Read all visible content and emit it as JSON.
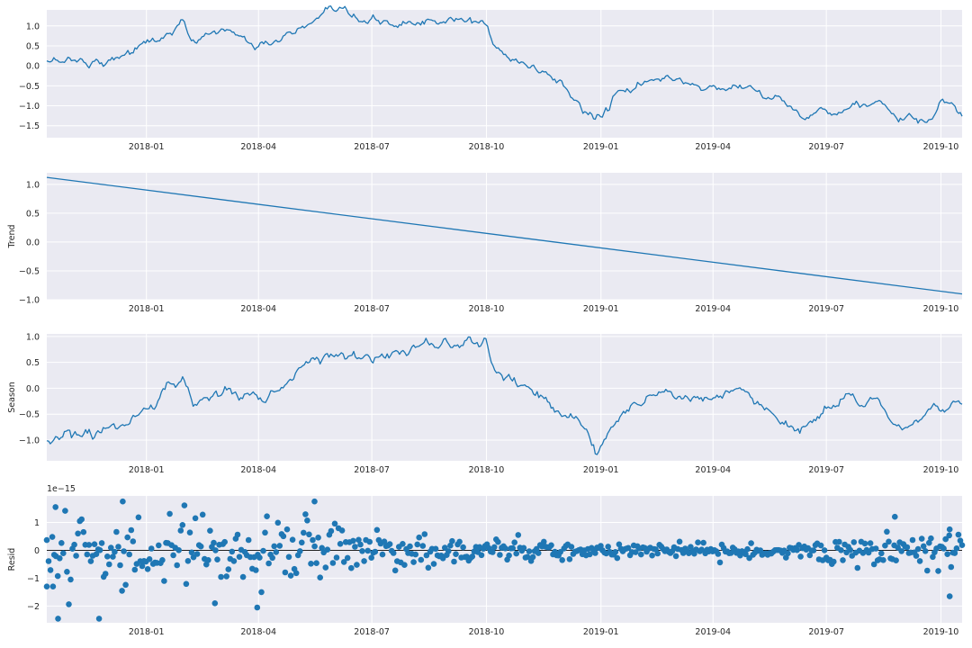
{
  "chart_data": [
    {
      "type": "line",
      "panel": "observed",
      "ylabel": "",
      "ylim": [
        -1.8,
        1.4
      ],
      "yticks": [
        1.0,
        0.5,
        0.0,
        -0.5,
        -1.0,
        -1.5
      ],
      "ytick_labels": [
        "1.0",
        "0.5",
        "0.0",
        "−0.5",
        "−1.0",
        "−1.5"
      ],
      "x_dates": [
        "2017-10-13",
        "2017-10-20",
        "2017-11-01",
        "2017-11-15",
        "2017-12-01",
        "2017-12-15",
        "2018-01-01",
        "2018-01-10",
        "2018-01-20",
        "2018-01-31",
        "2018-02-05",
        "2018-02-08",
        "2018-02-15",
        "2018-03-01",
        "2018-03-10",
        "2018-03-20",
        "2018-03-28",
        "2018-04-05",
        "2018-04-15",
        "2018-05-01",
        "2018-05-15",
        "2018-05-25",
        "2018-06-10",
        "2018-06-25",
        "2018-07-01",
        "2018-07-15",
        "2018-08-01",
        "2018-08-15",
        "2018-09-01",
        "2018-09-15",
        "2018-10-01",
        "2018-10-05",
        "2018-10-10",
        "2018-10-20",
        "2018-11-01",
        "2018-11-15",
        "2018-12-01",
        "2018-12-10",
        "2018-12-20",
        "2018-12-27",
        "2019-01-10",
        "2019-01-20",
        "2019-02-01",
        "2019-02-15",
        "2019-02-25",
        "2019-03-10",
        "2019-03-25",
        "2019-04-01",
        "2019-04-15",
        "2019-04-25",
        "2019-05-10",
        "2019-05-25",
        "2019-06-10",
        "2019-06-20",
        "2019-07-01",
        "2019-07-15",
        "2019-08-01",
        "2019-08-15",
        "2019-08-28",
        "2019-09-10",
        "2019-09-20",
        "2019-10-01",
        "2019-10-10",
        "2019-10-18"
      ],
      "values": [
        0.08,
        0.12,
        0.2,
        0.12,
        0.15,
        0.35,
        0.55,
        0.65,
        0.85,
        1.1,
        0.5,
        0.55,
        0.75,
        0.9,
        0.85,
        0.75,
        0.5,
        0.45,
        0.65,
        0.85,
        1.0,
        1.2,
        1.15,
        1.05,
        1.0,
        1.05,
        1.1,
        1.1,
        1.1,
        1.05,
        1.05,
        0.6,
        0.45,
        0.15,
        0.0,
        -0.15,
        -0.4,
        -0.8,
        -1.2,
        -1.35,
        -0.9,
        -0.6,
        -0.5,
        -0.4,
        -0.3,
        -0.4,
        -0.55,
        -0.6,
        -0.5,
        -0.45,
        -0.6,
        -0.9,
        -1.25,
        -1.3,
        -1.0,
        -0.95,
        -1.0,
        -0.95,
        -1.3,
        -1.45,
        -1.5,
        -0.95,
        -1.15,
        -1.3
      ]
    },
    {
      "type": "line",
      "panel": "trend",
      "ylabel": "Trend",
      "ylim": [
        -1.0,
        1.2
      ],
      "yticks": [
        1.0,
        0.5,
        0.0,
        -0.5,
        -1.0
      ],
      "ytick_labels": [
        "1.0",
        "0.5",
        "0.0",
        "−0.5",
        "−1.0"
      ],
      "x_dates": [
        "2017-10-13",
        "2019-10-18"
      ],
      "values": [
        1.12,
        -0.9
      ]
    },
    {
      "type": "line",
      "panel": "season",
      "ylabel": "Season",
      "ylim": [
        -1.4,
        1.05
      ],
      "yticks": [
        1.0,
        0.5,
        0.0,
        -0.5,
        -1.0
      ],
      "ytick_labels": [
        "1.0",
        "0.5",
        "0.0",
        "−0.5",
        "−1.0"
      ],
      "x_dates": [
        "2017-10-13",
        "2017-10-25",
        "2017-11-10",
        "2017-11-25",
        "2017-12-10",
        "2017-12-25",
        "2018-01-10",
        "2018-01-20",
        "2018-01-31",
        "2018-02-05",
        "2018-02-08",
        "2018-02-20",
        "2018-03-05",
        "2018-03-20",
        "2018-04-01",
        "2018-04-15",
        "2018-05-01",
        "2018-05-15",
        "2018-06-01",
        "2018-06-15",
        "2018-07-01",
        "2018-07-15",
        "2018-08-01",
        "2018-08-15",
        "2018-09-01",
        "2018-09-15",
        "2018-09-25",
        "2018-10-01",
        "2018-10-05",
        "2018-10-15",
        "2018-11-01",
        "2018-11-15",
        "2018-12-01",
        "2018-12-15",
        "2018-12-25",
        "2018-12-29",
        "2019-01-10",
        "2019-01-25",
        "2019-02-10",
        "2019-02-25",
        "2019-03-10",
        "2019-03-25",
        "2019-04-10",
        "2019-04-25",
        "2019-05-10",
        "2019-05-25",
        "2019-06-10",
        "2019-06-20",
        "2019-07-05",
        "2019-07-20",
        "2019-08-01",
        "2019-08-10",
        "2019-08-20",
        "2019-09-01",
        "2019-09-15",
        "2019-09-25",
        "2019-10-05",
        "2019-10-18"
      ],
      "values": [
        -1.05,
        -1.0,
        -0.95,
        -0.9,
        -0.7,
        -0.5,
        -0.3,
        0.0,
        0.25,
        -0.15,
        -0.45,
        -0.2,
        0.0,
        -0.15,
        -0.2,
        -0.05,
        0.2,
        0.5,
        0.7,
        0.65,
        0.55,
        0.65,
        0.75,
        0.82,
        0.88,
        0.85,
        0.9,
        0.9,
        0.45,
        0.2,
        0.0,
        -0.15,
        -0.35,
        -0.6,
        -1.0,
        -1.3,
        -0.7,
        -0.3,
        -0.15,
        -0.05,
        -0.2,
        -0.3,
        -0.15,
        -0.1,
        -0.25,
        -0.55,
        -0.85,
        -0.6,
        -0.4,
        -0.3,
        -0.35,
        -0.2,
        -0.65,
        -0.75,
        -0.6,
        -0.2,
        -0.35,
        -0.35
      ]
    },
    {
      "type": "scatter",
      "panel": "resid",
      "ylabel": "Resid",
      "offset_label": "1e−15",
      "ylim": [
        -2.6,
        1.95
      ],
      "yticks": [
        1,
        0,
        -1,
        -2
      ],
      "ytick_labels": [
        "1",
        "0",
        "−1",
        "−2"
      ],
      "hline": 0,
      "x_start": "2017-10-13",
      "x_end": "2019-10-18",
      "n_points": 500,
      "amplitude_envelope": {
        "dates": [
          "2017-10-13",
          "2018-01-01",
          "2018-06-01",
          "2018-10-01",
          "2019-01-01",
          "2019-06-01",
          "2019-08-15",
          "2019-10-18"
        ],
        "std": [
          1.0,
          0.9,
          0.75,
          0.35,
          0.15,
          0.18,
          0.4,
          0.45
        ]
      },
      "highlight_points": [
        {
          "x": "2017-10-22",
          "y": -2.45
        },
        {
          "x": "2017-11-24",
          "y": -2.45
        },
        {
          "x": "2018-03-31",
          "y": -2.05
        },
        {
          "x": "2018-02-25",
          "y": -1.9
        },
        {
          "x": "2017-12-13",
          "y": 1.75
        },
        {
          "x": "2018-05-16",
          "y": 1.75
        },
        {
          "x": "2017-10-20",
          "y": 1.55
        },
        {
          "x": "2019-08-25",
          "y": 1.2
        },
        {
          "x": "2019-10-08",
          "y": -1.65
        },
        {
          "x": "2019-10-08",
          "y": 0.75
        },
        {
          "x": "2017-10-13",
          "y": -1.3
        },
        {
          "x": "2017-10-18",
          "y": -1.3
        }
      ]
    }
  ],
  "x_axis": {
    "range": [
      "2017-10-13",
      "2019-10-18"
    ],
    "ticks": [
      "2018-01-01",
      "2018-04-01",
      "2018-07-01",
      "2018-10-01",
      "2019-01-01",
      "2019-04-01",
      "2019-07-01",
      "2019-10-01"
    ],
    "tick_labels": [
      "2018-01",
      "2018-04",
      "2018-07",
      "2018-10",
      "2019-01",
      "2019-04",
      "2019-07",
      "2019-10"
    ]
  },
  "colors": {
    "line": "#1f77b4",
    "background": "#eaeaf2",
    "grid": "#ffffff",
    "hline": "#000000"
  },
  "grid": true
}
